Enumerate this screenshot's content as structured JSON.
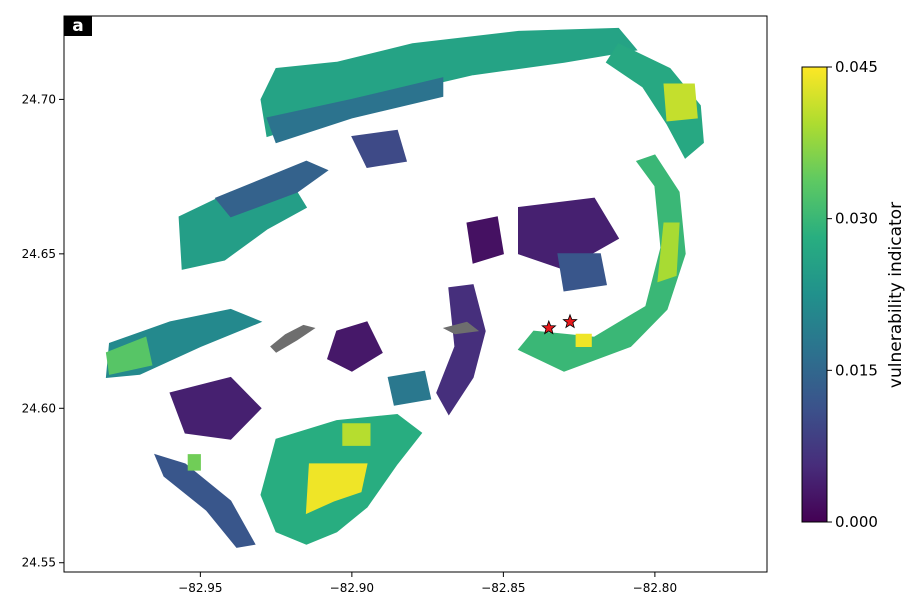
{
  "chart_data": {
    "type": "heatmap",
    "panel_label": "a",
    "xlim": [
      -82.995,
      -82.763
    ],
    "ylim": [
      24.547,
      24.727
    ],
    "xticks": [
      -82.95,
      -82.9,
      -82.85,
      -82.8
    ],
    "xtick_labels": [
      "−82.95",
      "−82.90",
      "−82.85",
      "−82.80"
    ],
    "yticks": [
      24.55,
      24.6,
      24.65,
      24.7
    ],
    "ytick_labels": [
      "24.55",
      "24.60",
      "24.65",
      "24.70"
    ],
    "colorbar": {
      "label": "vulnerability indicator",
      "colormap": "viridis",
      "range": [
        0.0,
        0.045
      ],
      "ticks": [
        0.0,
        0.015,
        0.03,
        0.045
      ],
      "tick_labels": [
        "0.000",
        "0.015",
        "0.030",
        "0.045"
      ]
    },
    "markers": [
      {
        "symbol": "star",
        "color": "#e8191c",
        "lon": -82.835,
        "lat": 24.626
      },
      {
        "symbol": "star",
        "color": "#e8191c",
        "lon": -82.828,
        "lat": 24.628
      }
    ],
    "regions": [
      {
        "name": "north-rim",
        "value": 0.026,
        "poly": [
          [
            -82.925,
            24.71
          ],
          [
            -82.905,
            24.712
          ],
          [
            -82.88,
            24.718
          ],
          [
            -82.845,
            24.722
          ],
          [
            -82.812,
            24.723
          ],
          [
            -82.806,
            24.716
          ],
          [
            -82.83,
            24.712
          ],
          [
            -82.86,
            24.708
          ],
          [
            -82.895,
            24.7
          ],
          [
            -82.915,
            24.692
          ],
          [
            -82.928,
            24.688
          ],
          [
            -82.93,
            24.7
          ]
        ]
      },
      {
        "name": "north-rim-band",
        "value": 0.017,
        "poly": [
          [
            -82.928,
            24.694
          ],
          [
            -82.9,
            24.7
          ],
          [
            -82.87,
            24.707
          ],
          [
            -82.87,
            24.701
          ],
          [
            -82.9,
            24.694
          ],
          [
            -82.925,
            24.686
          ]
        ]
      },
      {
        "name": "northeast-arc",
        "value": 0.027,
        "poly": [
          [
            -82.812,
            24.718
          ],
          [
            -82.795,
            24.71
          ],
          [
            -82.785,
            24.698
          ],
          [
            -82.784,
            24.686
          ],
          [
            -82.79,
            24.681
          ],
          [
            -82.796,
            24.692
          ],
          [
            -82.804,
            24.704
          ],
          [
            -82.816,
            24.712
          ]
        ]
      },
      {
        "name": "northeast-hotspot",
        "value": 0.041,
        "poly": [
          [
            -82.797,
            24.705
          ],
          [
            -82.787,
            24.705
          ],
          [
            -82.786,
            24.694
          ],
          [
            -82.796,
            24.693
          ]
        ]
      },
      {
        "name": "east-rim",
        "value": 0.03,
        "poly": [
          [
            -82.8,
            24.682
          ],
          [
            -82.792,
            24.67
          ],
          [
            -82.79,
            24.65
          ],
          [
            -82.796,
            24.632
          ],
          [
            -82.808,
            24.62
          ],
          [
            -82.83,
            24.612
          ],
          [
            -82.845,
            24.619
          ],
          [
            -82.84,
            24.625
          ],
          [
            -82.82,
            24.623
          ],
          [
            -82.803,
            24.633
          ],
          [
            -82.798,
            24.652
          ],
          [
            -82.8,
            24.672
          ],
          [
            -82.806,
            24.68
          ]
        ]
      },
      {
        "name": "east-hotspot",
        "value": 0.039,
        "poly": [
          [
            -82.797,
            24.66
          ],
          [
            -82.792,
            24.66
          ],
          [
            -82.793,
            24.643
          ],
          [
            -82.799,
            24.641
          ]
        ]
      },
      {
        "name": "east-red-star-band",
        "value": 0.044,
        "poly": [
          [
            -82.826,
            24.624
          ],
          [
            -82.821,
            24.624
          ],
          [
            -82.821,
            24.62
          ],
          [
            -82.826,
            24.62
          ]
        ]
      },
      {
        "name": "northwest-lobe",
        "value": 0.025,
        "poly": [
          [
            -82.957,
            24.662
          ],
          [
            -82.94,
            24.67
          ],
          [
            -82.92,
            24.673
          ],
          [
            -82.915,
            24.665
          ],
          [
            -82.928,
            24.658
          ],
          [
            -82.942,
            24.648
          ],
          [
            -82.956,
            24.645
          ]
        ]
      },
      {
        "name": "northwest-lobe-edge",
        "value": 0.014,
        "poly": [
          [
            -82.945,
            24.668
          ],
          [
            -82.915,
            24.68
          ],
          [
            -82.908,
            24.677
          ],
          [
            -82.918,
            24.67
          ],
          [
            -82.94,
            24.662
          ]
        ]
      },
      {
        "name": "west-shelf",
        "value": 0.021,
        "poly": [
          [
            -82.98,
            24.621
          ],
          [
            -82.96,
            24.628
          ],
          [
            -82.94,
            24.632
          ],
          [
            -82.93,
            24.628
          ],
          [
            -82.95,
            24.62
          ],
          [
            -82.97,
            24.611
          ],
          [
            -82.981,
            24.61
          ]
        ]
      },
      {
        "name": "west-hotspot",
        "value": 0.033,
        "poly": [
          [
            -82.981,
            24.618
          ],
          [
            -82.968,
            24.623
          ],
          [
            -82.966,
            24.614
          ],
          [
            -82.98,
            24.611
          ]
        ]
      },
      {
        "name": "south-lobe",
        "value": 0.028,
        "poly": [
          [
            -82.925,
            24.59
          ],
          [
            -82.905,
            24.596
          ],
          [
            -82.885,
            24.598
          ],
          [
            -82.877,
            24.592
          ],
          [
            -82.885,
            24.582
          ],
          [
            -82.895,
            24.568
          ],
          [
            -82.905,
            24.56
          ],
          [
            -82.915,
            24.556
          ],
          [
            -82.925,
            24.56
          ],
          [
            -82.93,
            24.572
          ]
        ]
      },
      {
        "name": "south-hotspot",
        "value": 0.044,
        "poly": [
          [
            -82.914,
            24.582
          ],
          [
            -82.895,
            24.582
          ],
          [
            -82.897,
            24.573
          ],
          [
            -82.906,
            24.57
          ],
          [
            -82.915,
            24.566
          ]
        ]
      },
      {
        "name": "south-hotspot-2",
        "value": 0.04,
        "poly": [
          [
            -82.903,
            24.595
          ],
          [
            -82.894,
            24.595
          ],
          [
            -82.894,
            24.588
          ],
          [
            -82.903,
            24.588
          ]
        ]
      },
      {
        "name": "southwest-fragment",
        "value": 0.012,
        "poly": [
          [
            -82.965,
            24.585
          ],
          [
            -82.955,
            24.582
          ],
          [
            -82.94,
            24.57
          ],
          [
            -82.932,
            24.556
          ],
          [
            -82.938,
            24.555
          ],
          [
            -82.948,
            24.567
          ],
          [
            -82.962,
            24.578
          ]
        ]
      },
      {
        "name": "central-lagoon-edge",
        "value": 0.006,
        "poly": [
          [
            -82.868,
            24.639
          ],
          [
            -82.86,
            24.64
          ],
          [
            -82.856,
            24.625
          ],
          [
            -82.86,
            24.61
          ],
          [
            -82.868,
            24.598
          ],
          [
            -82.872,
            24.605
          ],
          [
            -82.866,
            24.62
          ]
        ]
      },
      {
        "name": "central-patch",
        "value": 0.003,
        "poly": [
          [
            -82.905,
            24.625
          ],
          [
            -82.895,
            24.628
          ],
          [
            -82.89,
            24.618
          ],
          [
            -82.9,
            24.612
          ],
          [
            -82.908,
            24.616
          ]
        ]
      },
      {
        "name": "northcentral-patch",
        "value": 0.002,
        "poly": [
          [
            -82.862,
            24.66
          ],
          [
            -82.852,
            24.662
          ],
          [
            -82.85,
            24.65
          ],
          [
            -82.86,
            24.647
          ]
        ]
      },
      {
        "name": "east-inner-patch",
        "value": 0.004,
        "poly": [
          [
            -82.845,
            24.665
          ],
          [
            -82.82,
            24.668
          ],
          [
            -82.812,
            24.655
          ],
          [
            -82.83,
            24.645
          ],
          [
            -82.845,
            24.65
          ]
        ]
      },
      {
        "name": "east-inner-mid",
        "value": 0.012,
        "poly": [
          [
            -82.832,
            24.65
          ],
          [
            -82.818,
            24.65
          ],
          [
            -82.816,
            24.64
          ],
          [
            -82.83,
            24.638
          ]
        ]
      },
      {
        "name": "southwest-green",
        "value": 0.035,
        "poly": [
          [
            -82.954,
            24.585
          ],
          [
            -82.95,
            24.585
          ],
          [
            -82.95,
            24.58
          ],
          [
            -82.954,
            24.58
          ]
        ]
      },
      {
        "name": "west-interior",
        "value": 0.004,
        "poly": [
          [
            -82.96,
            24.605
          ],
          [
            -82.94,
            24.61
          ],
          [
            -82.93,
            24.6
          ],
          [
            -82.94,
            24.59
          ],
          [
            -82.955,
            24.592
          ]
        ]
      },
      {
        "name": "north-interior",
        "value": 0.01,
        "poly": [
          [
            -82.9,
            24.688
          ],
          [
            -82.885,
            24.69
          ],
          [
            -82.882,
            24.68
          ],
          [
            -82.895,
            24.678
          ]
        ]
      },
      {
        "name": "central-south-patch",
        "value": 0.018,
        "poly": [
          [
            -82.888,
            24.61
          ],
          [
            -82.876,
            24.612
          ],
          [
            -82.874,
            24.603
          ],
          [
            -82.886,
            24.601
          ]
        ]
      }
    ],
    "gray_patches": [
      {
        "poly": [
          [
            -82.925,
            24.618
          ],
          [
            -82.918,
            24.622
          ],
          [
            -82.912,
            24.626
          ],
          [
            -82.916,
            24.627
          ],
          [
            -82.922,
            24.624
          ],
          [
            -82.927,
            24.62
          ]
        ]
      },
      {
        "poly": [
          [
            -82.87,
            24.626
          ],
          [
            -82.862,
            24.628
          ],
          [
            -82.858,
            24.625
          ],
          [
            -82.866,
            24.624
          ]
        ]
      }
    ]
  }
}
